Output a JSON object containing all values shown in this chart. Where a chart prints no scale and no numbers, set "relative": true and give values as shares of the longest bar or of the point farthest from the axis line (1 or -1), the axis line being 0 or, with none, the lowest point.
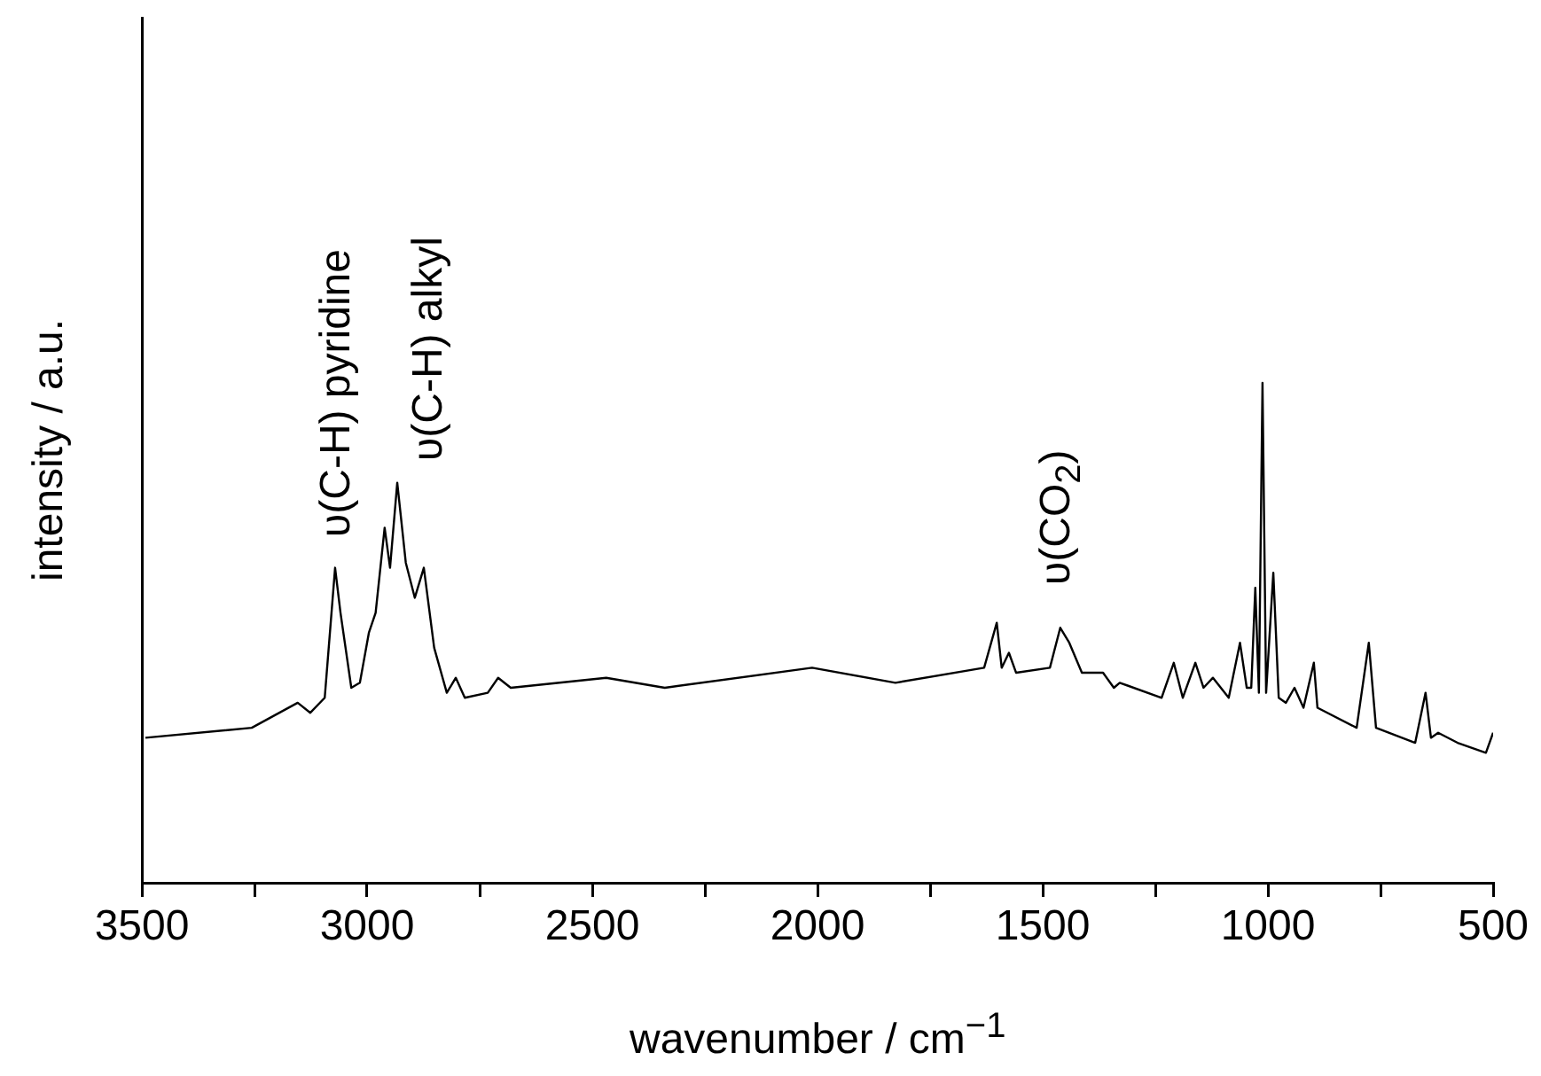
{
  "chart_data": {
    "type": "line",
    "relative": true,
    "xlabel": "wavenumber / cm$^{−1}$",
    "ylabel": "intensity / a.u.",
    "xlim": [
      3500,
      500
    ],
    "xticks": [
      3500,
      {
        "value": 3250,
        "label": null
      },
      3000,
      {
        "value": 2750,
        "label": null
      },
      2500,
      {
        "value": 2250,
        "label": null
      },
      2000,
      {
        "value": 1750,
        "label": null
      },
      1500,
      {
        "value": 1250,
        "label": null
      },
      1000,
      {
        "value": 750,
        "label": null
      },
      500
    ],
    "tick_labels": "x",
    "grid": false,
    "legend": false,
    "marker": "none",
    "line_style": "solid",
    "annotations": [
      "υ(C-H) pyridine",
      "υ(C-H) alkyl",
      "υ(CO$_{2}$)"
    ],
    "series": [
      {
        "color": "#000000",
        "x": [
          3492,
          3256,
          3154,
          3126,
          3094,
          3071,
          3059,
          3035,
          3016,
          2996,
          2981,
          2961,
          2949,
          2933,
          2914,
          2894,
          2874,
          2851,
          2823,
          2803,
          2783,
          2732,
          2709,
          2681,
          2469,
          2339,
          2012,
          1827,
          1630,
          1602,
          1591,
          1575,
          1559,
          1484,
          1461,
          1441,
          1413,
          1366,
          1342,
          1329,
          1236,
          1209,
          1189,
          1161,
          1143,
          1122,
          1087,
          1062,
          1047,
          1037,
          1028,
          1020,
          1012,
          1004,
          988,
          976,
          960,
          941,
          921,
          898,
          890,
          803,
          776,
          760,
          673,
          650,
          638,
          622,
          579,
          516,
          500
        ],
        "values": [
          0.29,
          0.31,
          0.36,
          0.34,
          0.37,
          0.63,
          0.54,
          0.39,
          0.4,
          0.5,
          0.54,
          0.71,
          0.63,
          0.8,
          0.64,
          0.57,
          0.63,
          0.47,
          0.38,
          0.41,
          0.37,
          0.38,
          0.41,
          0.39,
          0.41,
          0.39,
          0.43,
          0.4,
          0.43,
          0.52,
          0.43,
          0.46,
          0.42,
          0.43,
          0.51,
          0.48,
          0.42,
          0.42,
          0.39,
          0.4,
          0.37,
          0.44,
          0.37,
          0.44,
          0.39,
          0.41,
          0.37,
          0.48,
          0.39,
          0.39,
          0.59,
          0.38,
          1,
          0.38,
          0.62,
          0.37,
          0.36,
          0.39,
          0.35,
          0.44,
          0.35,
          0.31,
          0.48,
          0.31,
          0.28,
          0.38,
          0.29,
          0.3,
          0.28,
          0.26,
          0.3
        ]
      }
    ]
  }
}
